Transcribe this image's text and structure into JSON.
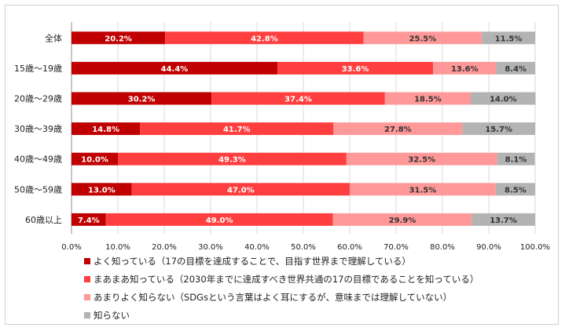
{
  "chart_data": {
    "type": "bar",
    "orientation": "horizontal",
    "stacked": true,
    "categories": [
      "全体",
      "15歳～19歳",
      "20歳～29歳",
      "30歳～39歳",
      "40歳～49歳",
      "50歳～59歳",
      "60歳以上"
    ],
    "series": [
      {
        "name": "よく知っている（17の目標を達成することで、目指す世界まで理解している）",
        "color": "#c00000",
        "values": [
          20.2,
          44.4,
          30.2,
          14.8,
          10.0,
          13.0,
          7.4
        ]
      },
      {
        "name": "まあまあ知っている（2030年までに達成すべき世界共通の17の目標であることを知っている）",
        "color": "#ff3f3f",
        "values": [
          42.8,
          33.6,
          37.4,
          41.7,
          49.3,
          47.0,
          49.0
        ]
      },
      {
        "name": "あまりよく知らない（SDGsという言葉はよく耳にするが、意味までは理解していない）",
        "color": "#ff9999",
        "values": [
          25.5,
          13.6,
          18.5,
          27.8,
          32.5,
          31.5,
          29.9
        ]
      },
      {
        "name": "知らない",
        "color": "#b3b3b3",
        "values": [
          11.5,
          8.4,
          14.0,
          15.7,
          8.1,
          8.5,
          13.7
        ]
      }
    ],
    "xlim": [
      0,
      100
    ],
    "ticks": [
      "0.0%",
      "10.0%",
      "20.0%",
      "30.0%",
      "40.0%",
      "50.0%",
      "60.0%",
      "70.0%",
      "80.0%",
      "90.0%",
      "100.0%"
    ],
    "value_suffix": "%",
    "label_colors": [
      "#ffffff",
      "#ffffff",
      "#333333",
      "#333333"
    ],
    "grid": true,
    "legend_position": "bottom"
  }
}
